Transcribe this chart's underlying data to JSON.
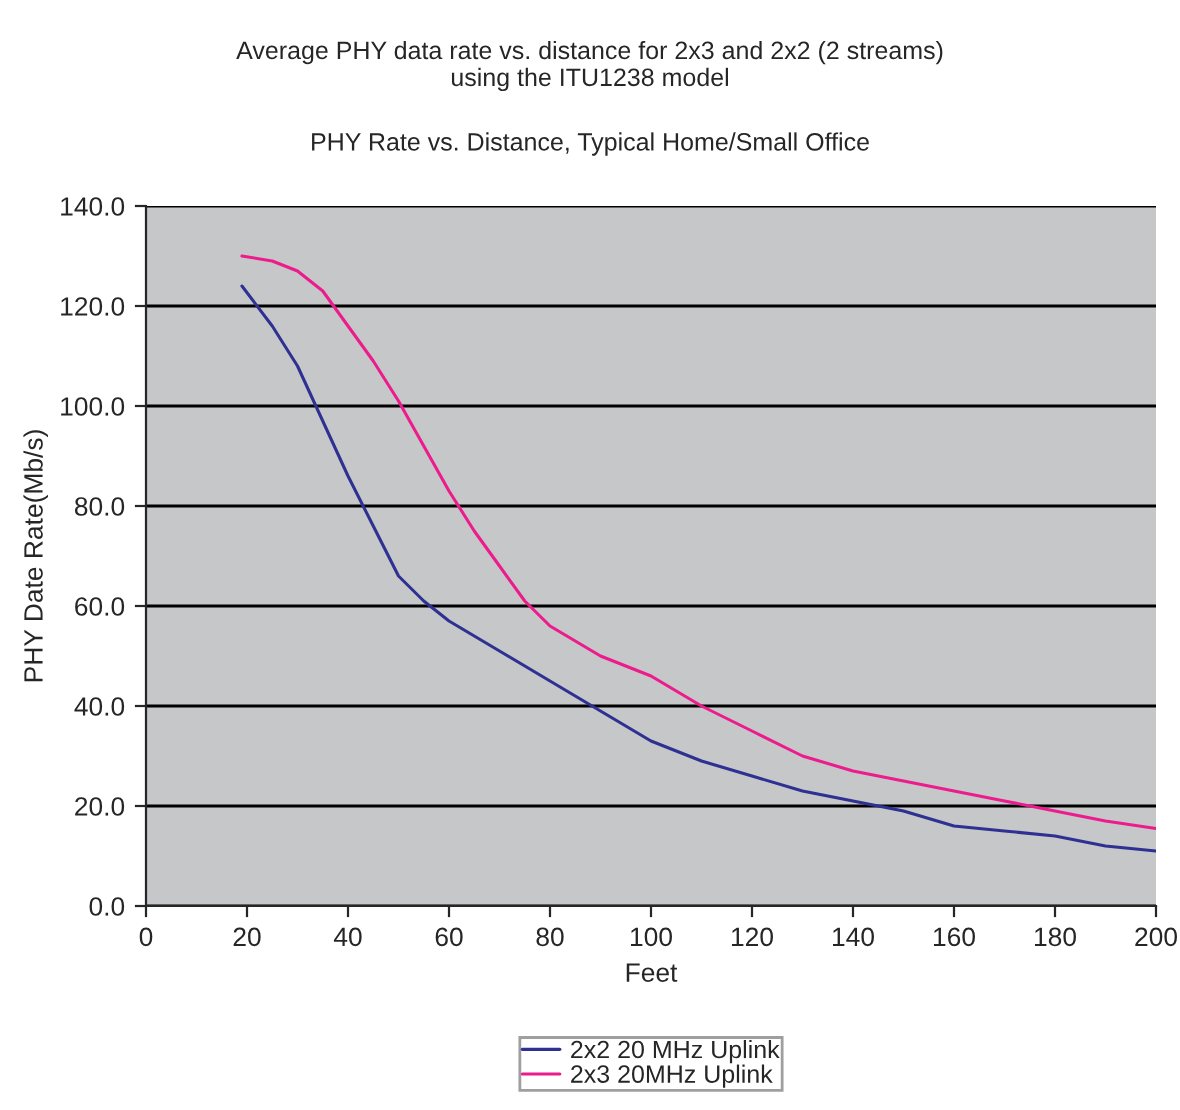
{
  "chart_data": {
    "type": "line",
    "title": "Average PHY data rate vs. distance for 2x3 and 2x2 (2 streams)\nusing the ITU1238 model",
    "subtitle": "PHY Rate vs. Distance, Typical Home/Small Office",
    "xlabel": "Feet",
    "ylabel": "PHY Date Rate(Mb/s)",
    "xlim": [
      0,
      200
    ],
    "xticks": [
      0,
      20,
      40,
      60,
      80,
      100,
      120,
      140,
      160,
      180,
      200
    ],
    "ylim": [
      0,
      140
    ],
    "yticks": [
      {
        "value": 0,
        "label": "0.0"
      },
      {
        "value": 20,
        "label": "20.0"
      },
      {
        "value": 40,
        "label": "40.0"
      },
      {
        "value": 60,
        "label": "60.0"
      },
      {
        "value": 80,
        "label": "80.0"
      },
      {
        "value": 100,
        "label": "100.0"
      },
      {
        "value": 120,
        "label": "120.0"
      },
      {
        "value": 140,
        "label": "140.0"
      }
    ],
    "grid": "y",
    "legend": "bottom",
    "marker": "none",
    "line_style": "solid",
    "series": [
      {
        "name": "2x2 20 MHz Uplink",
        "color": "#2e3192",
        "x": [
          19,
          25,
          30,
          35,
          40,
          45,
          50,
          55,
          60,
          70,
          80,
          90,
          100,
          110,
          120,
          130,
          140,
          150,
          160,
          170,
          180,
          190,
          200
        ],
        "values": [
          124,
          116,
          108,
          97,
          86,
          76,
          66,
          61,
          57,
          51,
          45,
          39,
          33,
          29,
          26,
          23,
          21,
          19,
          16,
          15,
          14,
          12,
          11
        ]
      },
      {
        "name": "2x3 20MHz Uplink",
        "color": "#ec1c8c",
        "x": [
          19,
          25,
          30,
          35,
          40,
          45,
          50,
          55,
          60,
          65,
          70,
          75,
          80,
          90,
          100,
          110,
          120,
          130,
          140,
          150,
          160,
          170,
          180,
          190,
          200
        ],
        "values": [
          130,
          129,
          127,
          123,
          116,
          109,
          101,
          92,
          83,
          75,
          68,
          61,
          56,
          50,
          46,
          40,
          35,
          30,
          27,
          25,
          23,
          21,
          19,
          17,
          15.5
        ]
      }
    ]
  }
}
